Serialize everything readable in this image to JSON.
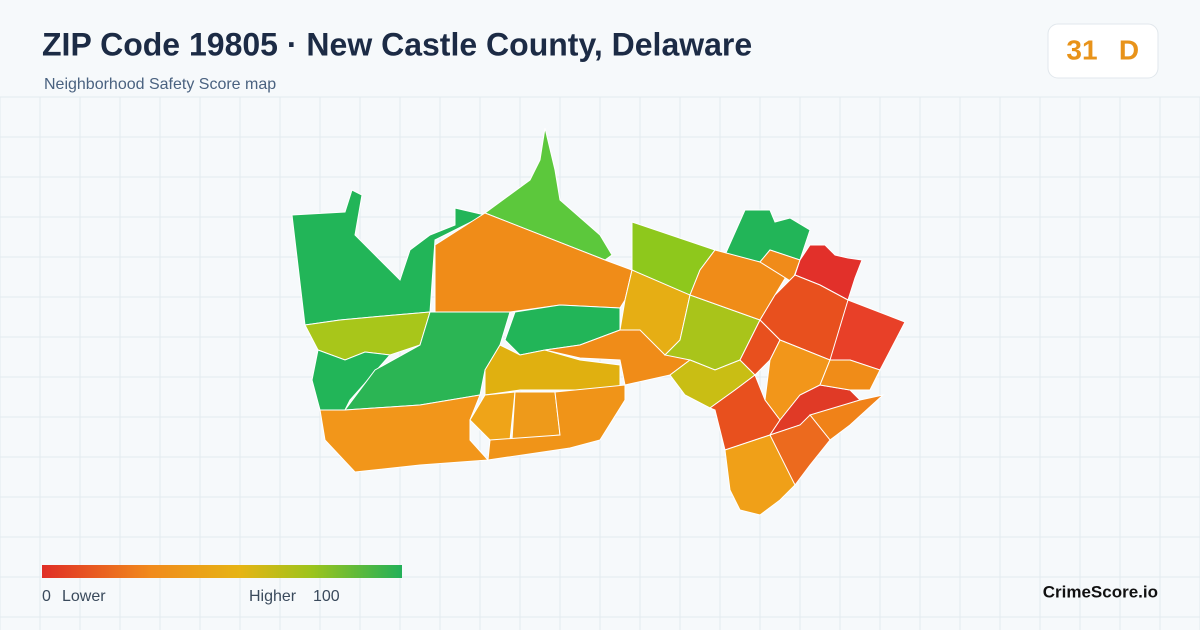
{
  "header": {
    "title": "ZIP Code 19805 · New Castle County, Delaware",
    "subtitle": "Neighborhood Safety Score map"
  },
  "score": {
    "value": 31,
    "grade": "D"
  },
  "legend": {
    "min": 0,
    "min_label": "Lower",
    "max_label": "Higher",
    "max": 100
  },
  "brand": "CrimeScore.io"
}
